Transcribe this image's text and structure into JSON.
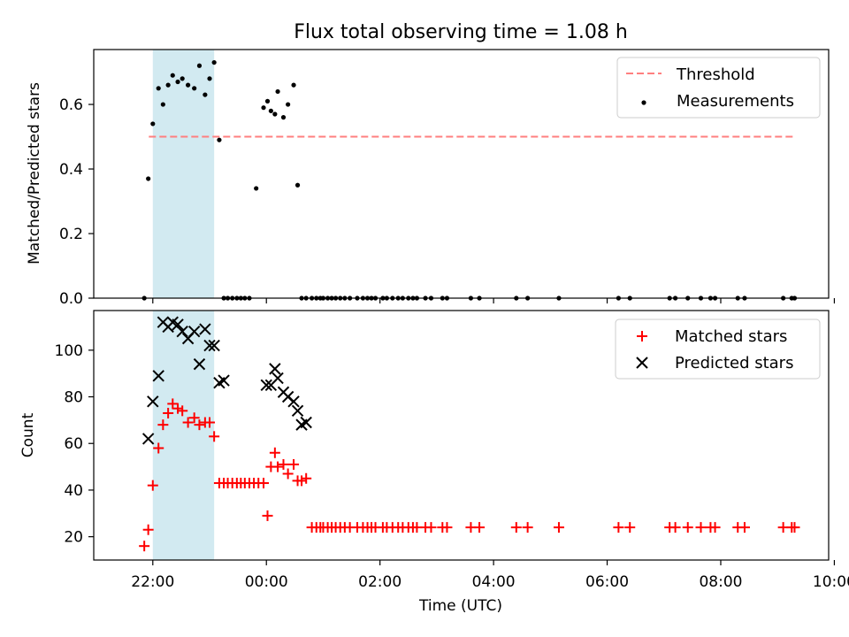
{
  "title": "Flux total observing time = 1.08 h",
  "colors": {
    "highlight": "#add8e6",
    "threshold": "#ff7f7f",
    "measurement": "#000000",
    "matched": "#ff0000",
    "predicted": "#000000"
  },
  "chart_data": [
    {
      "type": "scatter",
      "ylabel": "Matched/Predicted stars",
      "ylim": [
        0,
        0.77
      ],
      "yticks": [
        "0.0",
        "0.2",
        "0.4",
        "0.6"
      ],
      "xlim": [
        -1.04,
        11.9
      ],
      "highlight_span": [
        0.0,
        1.08
      ],
      "legend_placement": "top-right",
      "threshold": {
        "name": "Threshold",
        "value": 0.5,
        "x_range": [
          -0.07,
          11.3
        ]
      },
      "measurements": {
        "name": "Measurements",
        "x": [
          -0.15,
          -0.08,
          0.0,
          0.1,
          0.18,
          0.27,
          0.35,
          0.44,
          0.52,
          0.62,
          0.73,
          0.82,
          0.92,
          1.0,
          1.08,
          1.17,
          1.25,
          1.32,
          1.4,
          1.48,
          1.55,
          1.62,
          1.7,
          1.82,
          1.95,
          2.02,
          2.08,
          2.15,
          2.2,
          2.3,
          2.38,
          2.48,
          2.55,
          2.62,
          2.7,
          2.8,
          2.88,
          2.95,
          3.0,
          3.08,
          3.15,
          3.22,
          3.3,
          3.38,
          3.47,
          3.6,
          3.7,
          3.78,
          3.85,
          3.92,
          4.05,
          4.12,
          4.22,
          4.32,
          4.4,
          4.5,
          4.58,
          4.65,
          4.8,
          4.9,
          5.1,
          5.18,
          5.6,
          5.75,
          6.4,
          6.6,
          7.15,
          8.2,
          8.4,
          9.1,
          9.2,
          9.42,
          9.65,
          9.82,
          9.9,
          10.3,
          10.42,
          11.1,
          11.25,
          11.3
        ],
        "y": [
          0.0,
          0.37,
          0.54,
          0.65,
          0.6,
          0.66,
          0.69,
          0.67,
          0.68,
          0.66,
          0.65,
          0.72,
          0.63,
          0.68,
          0.73,
          0.49,
          0.0,
          0.0,
          0.0,
          0.0,
          0.0,
          0.0,
          0.0,
          0.34,
          0.59,
          0.61,
          0.58,
          0.57,
          0.64,
          0.56,
          0.6,
          0.66,
          0.35,
          0.0,
          0.0,
          0.0,
          0.0,
          0.0,
          0.0,
          0.0,
          0.0,
          0.0,
          0.0,
          0.0,
          0.0,
          0.0,
          0.0,
          0.0,
          0.0,
          0.0,
          0.0,
          0.0,
          0.0,
          0.0,
          0.0,
          0.0,
          0.0,
          0.0,
          0.0,
          0.0,
          0.0,
          0.0,
          0.0,
          0.0,
          0.0,
          0.0,
          0.0,
          0.0,
          0.0,
          0.0,
          0.0,
          0.0,
          0.0,
          0.0,
          0.0,
          0.0,
          0.0,
          0.0,
          0.0,
          0.0
        ]
      }
    },
    {
      "type": "scatter",
      "ylabel": "Count",
      "xlabel": "Time (UTC)",
      "ylim": [
        10,
        117
      ],
      "yticks": [
        "20",
        "40",
        "60",
        "80",
        "100"
      ],
      "xlim": [
        -1.04,
        11.9
      ],
      "xticks": [
        {
          "value": 0,
          "label": "22:00"
        },
        {
          "value": 2,
          "label": "00:00"
        },
        {
          "value": 4,
          "label": "02:00"
        },
        {
          "value": 6,
          "label": "04:00"
        },
        {
          "value": 8,
          "label": "06:00"
        },
        {
          "value": 10,
          "label": "08:00"
        },
        {
          "value": 12,
          "label": "10:00"
        }
      ],
      "highlight_span": [
        0.0,
        1.08
      ],
      "legend_placement": "top-right",
      "series": [
        {
          "name": "Matched stars",
          "marker": "plus",
          "x": [
            -0.15,
            -0.08,
            0.0,
            0.1,
            0.18,
            0.27,
            0.35,
            0.44,
            0.52,
            0.62,
            0.73,
            0.82,
            0.92,
            1.0,
            1.08,
            1.17,
            1.25,
            1.32,
            1.4,
            1.48,
            1.55,
            1.62,
            1.7,
            1.78,
            1.86,
            1.95,
            2.02,
            2.08,
            2.15,
            2.2,
            2.3,
            2.38,
            2.48,
            2.55,
            2.62,
            2.7,
            2.8,
            2.88,
            2.95,
            3.0,
            3.08,
            3.15,
            3.22,
            3.3,
            3.38,
            3.47,
            3.6,
            3.7,
            3.78,
            3.85,
            3.92,
            4.05,
            4.12,
            4.22,
            4.32,
            4.4,
            4.5,
            4.58,
            4.65,
            4.8,
            4.9,
            5.1,
            5.18,
            5.6,
            5.75,
            6.4,
            6.6,
            7.15,
            8.2,
            8.4,
            9.1,
            9.2,
            9.42,
            9.65,
            9.82,
            9.9,
            10.3,
            10.42,
            11.1,
            11.25,
            11.3
          ],
          "y": [
            16,
            23,
            42,
            58,
            68,
            73,
            77,
            75,
            74,
            69,
            71,
            68,
            69,
            69,
            63,
            43,
            43,
            43,
            43,
            43,
            43,
            43,
            43,
            43,
            43,
            43,
            29,
            50,
            56,
            50,
            51,
            47,
            51,
            44,
            44,
            45,
            24,
            24,
            24,
            24,
            24,
            24,
            24,
            24,
            24,
            24,
            24,
            24,
            24,
            24,
            24,
            24,
            24,
            24,
            24,
            24,
            24,
            24,
            24,
            24,
            24,
            24,
            24,
            24,
            24,
            24,
            24,
            24,
            24,
            24,
            24,
            24,
            24,
            24,
            24,
            24,
            24,
            24,
            24,
            24,
            24
          ]
        },
        {
          "name": "Predicted stars",
          "marker": "x",
          "x": [
            -0.08,
            0.0,
            0.1,
            0.18,
            0.27,
            0.35,
            0.44,
            0.52,
            0.62,
            0.73,
            0.82,
            0.92,
            1.0,
            1.08,
            1.17,
            1.25,
            2.0,
            2.08,
            2.15,
            2.2,
            2.3,
            2.38,
            2.48,
            2.55,
            2.62,
            2.7
          ],
          "y": [
            62,
            78,
            89,
            112,
            110,
            112,
            111,
            108,
            105,
            108,
            94,
            109,
            102,
            102,
            86,
            87,
            85,
            85,
            92,
            88,
            82,
            80,
            78,
            74,
            68,
            69
          ]
        }
      ]
    }
  ]
}
